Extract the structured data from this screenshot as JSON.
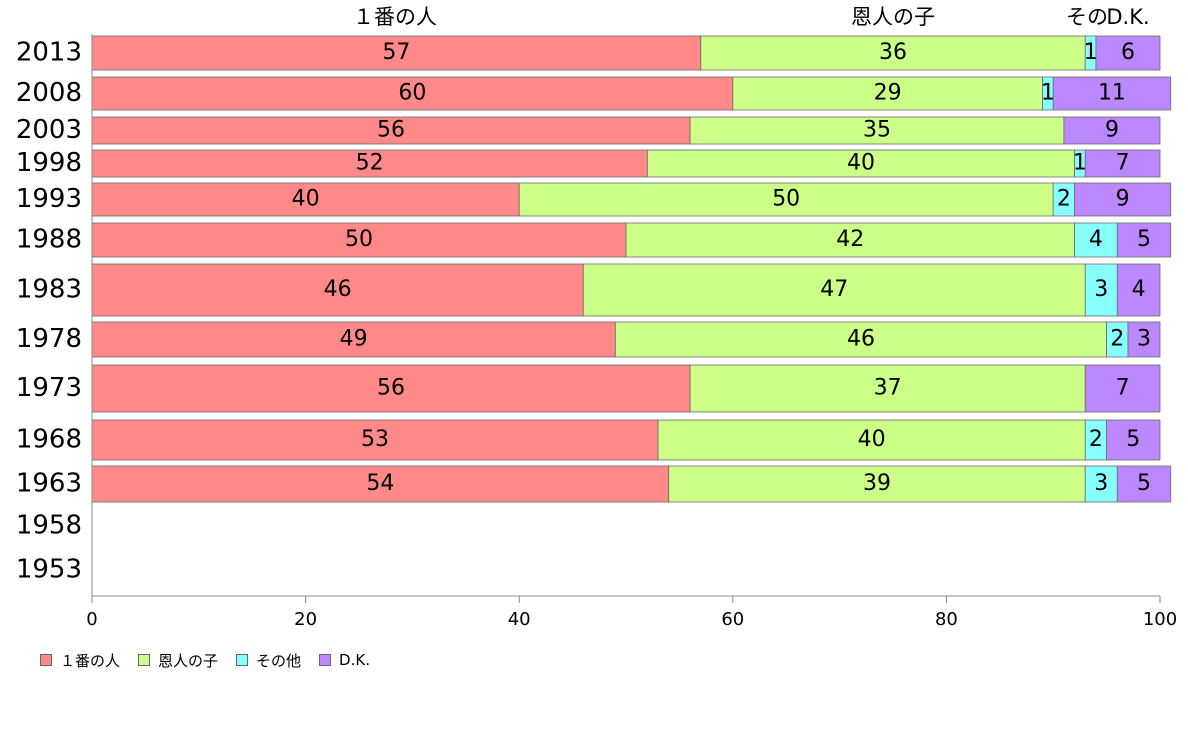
{
  "chart_data": {
    "type": "bar",
    "orientation": "horizontal",
    "stacked": true,
    "categories": [
      "2013",
      "2008",
      "2003",
      "1998",
      "1993",
      "1988",
      "1983",
      "1978",
      "1973",
      "1968",
      "1963",
      "1958",
      "1953"
    ],
    "series": [
      {
        "name": "１番の人",
        "color": "#ff8888",
        "values": [
          57,
          60,
          56,
          52,
          40,
          50,
          46,
          49,
          56,
          53,
          54,
          null,
          null
        ]
      },
      {
        "name": "恩人の子",
        "color": "#ccff88",
        "values": [
          36,
          29,
          35,
          40,
          50,
          42,
          47,
          46,
          37,
          40,
          39,
          null,
          null
        ]
      },
      {
        "name": "その他",
        "color": "#88ffff",
        "values": [
          1,
          1,
          0,
          1,
          2,
          4,
          3,
          2,
          0,
          2,
          3,
          null,
          null
        ]
      },
      {
        "name": "D.K.",
        "color": "#bb88ff",
        "values": [
          6,
          11,
          9,
          7,
          9,
          5,
          4,
          3,
          7,
          5,
          5,
          null,
          null
        ]
      }
    ],
    "labels": [
      [
        "57",
        "36",
        "1",
        "6"
      ],
      [
        "60",
        "29",
        "1",
        "11"
      ],
      [
        "56",
        "35",
        "",
        "9"
      ],
      [
        "52",
        "40",
        "1",
        "7"
      ],
      [
        "40",
        "50",
        "2",
        "9"
      ],
      [
        "50",
        "42",
        "4",
        "5"
      ],
      [
        "46",
        "47",
        "3",
        "4"
      ],
      [
        "49",
        "46",
        "2",
        "3"
      ],
      [
        "56",
        "37",
        "",
        "7"
      ],
      [
        "53",
        "40",
        "2",
        "5"
      ],
      [
        "54",
        "39",
        "3",
        "5"
      ],
      [
        "",
        "",
        "",
        ""
      ],
      [
        "",
        "",
        "",
        ""
      ]
    ],
    "top_labels": [
      "１番の人",
      "恩人の子",
      "その",
      "D.K."
    ],
    "xlim": [
      0,
      100
    ],
    "xticks": [
      0,
      20,
      40,
      60,
      80,
      100
    ],
    "legend_position": "bottom-left",
    "grid": false
  }
}
